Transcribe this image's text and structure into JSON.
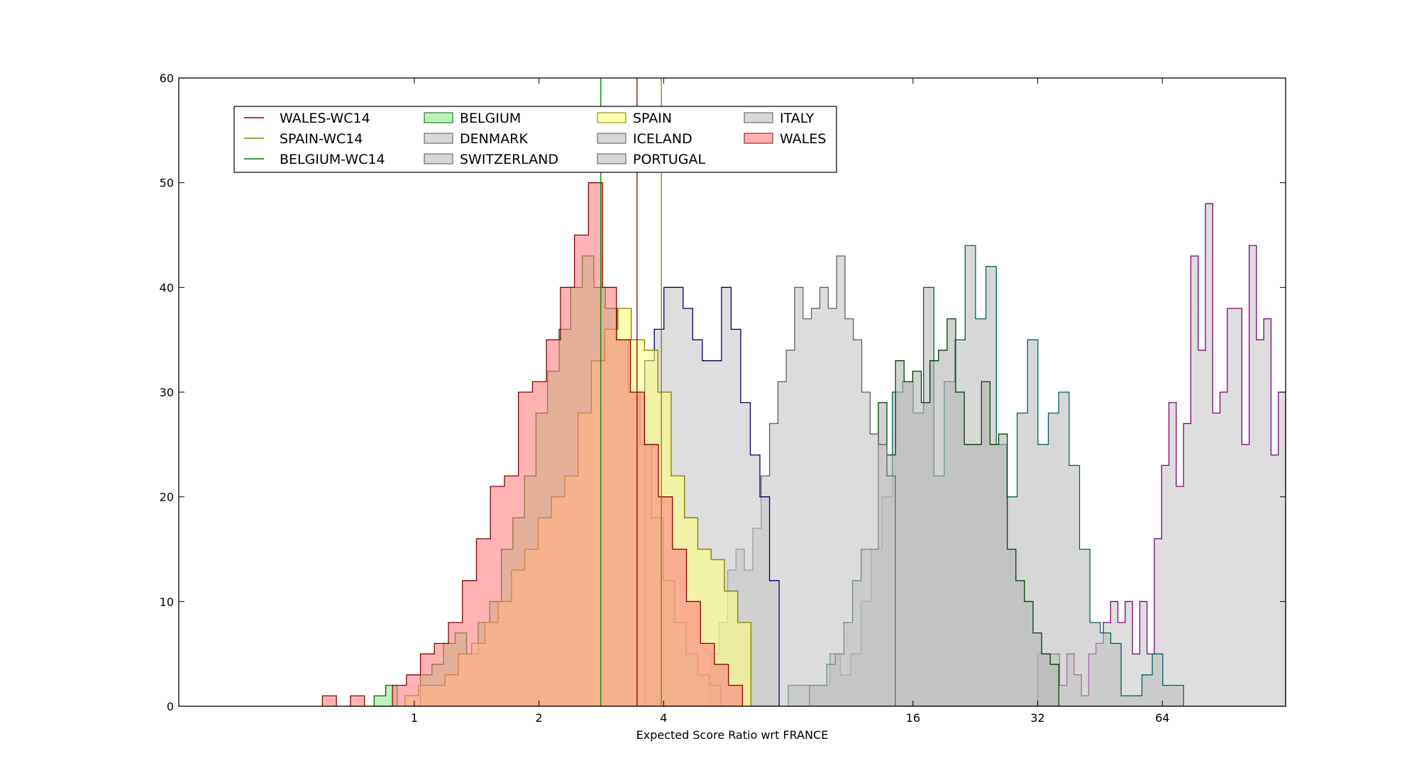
{
  "chart_data": {
    "type": "histogram",
    "xlabel": "Expected Score Ratio wrt FRANCE",
    "ylabel": "",
    "x_scale": "log2",
    "xlim": [
      0.27,
      127
    ],
    "ylim": [
      0,
      60
    ],
    "x_ticks": [
      {
        "value": 1,
        "label": "1"
      },
      {
        "value": 2,
        "label": "2"
      },
      {
        "value": 4,
        "label": "4"
      },
      {
        "value": 16,
        "label": "16"
      },
      {
        "value": 32,
        "label": "32"
      },
      {
        "value": 64,
        "label": "64"
      }
    ],
    "y_ticks": [
      {
        "value": 0,
        "label": "0"
      },
      {
        "value": 10,
        "label": "10"
      },
      {
        "value": 20,
        "label": "20"
      },
      {
        "value": 30,
        "label": "30"
      },
      {
        "value": 40,
        "label": "40"
      },
      {
        "value": 50,
        "label": "50"
      },
      {
        "value": 60,
        "label": "60"
      }
    ],
    "legend_position": "upper-left",
    "reference_lines": [
      {
        "name": "WALES-WC14",
        "x": 3.45,
        "color": "#8b0000"
      },
      {
        "name": "SPAIN-WC14",
        "x": 3.95,
        "color": "#808000"
      },
      {
        "name": "BELGIUM-WC14",
        "x": 2.82,
        "color": "#008000"
      }
    ],
    "series": [
      {
        "name": "ITALY",
        "fill": "#c8c8c8",
        "stroke": "#800080",
        "x_start": 32,
        "x_end": 127,
        "counts": [
          5,
          5,
          5,
          2,
          5,
          3,
          1,
          5,
          6,
          8,
          10,
          8,
          10,
          5,
          10,
          5,
          16,
          23,
          29,
          21,
          27,
          43,
          34,
          48,
          28,
          30,
          38,
          38,
          25,
          44,
          35,
          37,
          24,
          30
        ]
      },
      {
        "name": "DENMARK",
        "fill": "#bcbcbc",
        "stroke": "#006060",
        "x_start": 8,
        "x_end": 72,
        "counts": [
          2,
          2,
          2,
          2,
          5,
          3,
          5,
          10,
          15,
          20,
          30,
          31,
          28,
          40,
          22,
          31,
          35,
          44,
          37,
          42,
          25,
          20,
          28,
          35,
          25,
          28,
          30,
          23,
          15,
          8,
          7,
          6,
          1,
          1,
          3,
          5,
          2,
          2
        ]
      },
      {
        "name": "SWITZERLAND",
        "fill": "#b4b4b4",
        "stroke": "#004000",
        "x_start": 9,
        "x_end": 36,
        "counts": [
          2,
          2,
          4,
          5,
          8,
          12,
          15,
          15,
          29,
          24,
          33,
          31,
          32,
          29,
          33,
          34,
          37,
          30,
          25,
          25,
          31,
          25,
          26,
          15,
          12,
          10,
          7,
          5,
          4
        ]
      },
      {
        "name": "ICELAND",
        "fill": "#c4c4c4",
        "stroke": "#606060",
        "x_start": 5.2,
        "x_end": 14.5,
        "counts": [
          5,
          8,
          13,
          15,
          13,
          17,
          22,
          27,
          31,
          34,
          40,
          37,
          38,
          40,
          38,
          43,
          37,
          35,
          30,
          26,
          25,
          22
        ]
      },
      {
        "name": "PORTUGAL",
        "fill": "#c8c8c8",
        "stroke": "#000060",
        "x_start": 3.6,
        "x_end": 7.6,
        "counts": [
          33,
          36,
          40,
          40,
          38,
          35,
          33,
          33,
          40,
          36,
          29,
          24,
          20,
          12
        ]
      },
      {
        "name": "BELGIUM",
        "fill": "#90ee90",
        "stroke": "#006400",
        "x_start": 0.8,
        "x_end": 5.5,
        "counts": [
          1,
          2,
          0,
          0,
          3,
          4,
          6,
          7,
          5,
          8,
          10,
          15,
          18,
          22,
          28,
          32,
          36,
          40,
          43,
          40,
          38,
          35,
          30,
          25,
          18,
          12,
          8,
          5,
          3,
          2
        ]
      },
      {
        "name": "SPAIN",
        "fill": "#ffff80",
        "stroke": "#808000",
        "x_start": 0.95,
        "x_end": 6.5,
        "counts": [
          1,
          2,
          2,
          3,
          5,
          6,
          8,
          10,
          13,
          15,
          18,
          20,
          22,
          28,
          33,
          36,
          38,
          35,
          34,
          30,
          22,
          18,
          15,
          14,
          11,
          8
        ]
      },
      {
        "name": "WALES",
        "fill": "#ff8080",
        "stroke": "#8b0000",
        "x_start": 0.6,
        "x_end": 6.2,
        "counts": [
          1,
          0,
          1,
          0,
          0,
          2,
          3,
          5,
          6,
          8,
          12,
          16,
          21,
          22,
          30,
          31,
          35,
          40,
          45,
          50,
          40,
          35,
          30,
          25,
          20,
          15,
          10,
          6,
          4,
          2
        ]
      }
    ],
    "legend": [
      {
        "name": "WALES-WC14",
        "kind": "line",
        "color": "#8b0000"
      },
      {
        "name": "SPAIN-WC14",
        "kind": "line",
        "color": "#808000"
      },
      {
        "name": "BELGIUM-WC14",
        "kind": "line",
        "color": "#008000"
      },
      {
        "name": "BELGIUM",
        "kind": "patch",
        "fill": "#90ee90",
        "stroke": "#006400"
      },
      {
        "name": "DENMARK",
        "kind": "patch",
        "fill": "#bcbcbc",
        "stroke": "#555555"
      },
      {
        "name": "SWITZERLAND",
        "kind": "patch",
        "fill": "#bcbcbc",
        "stroke": "#555555"
      },
      {
        "name": "SPAIN",
        "kind": "patch",
        "fill": "#ffff80",
        "stroke": "#808000"
      },
      {
        "name": "ICELAND",
        "kind": "patch",
        "fill": "#bcbcbc",
        "stroke": "#555555"
      },
      {
        "name": "PORTUGAL",
        "kind": "patch",
        "fill": "#bcbcbc",
        "stroke": "#555555"
      },
      {
        "name": "ITALY",
        "kind": "patch",
        "fill": "#bcbcbc",
        "stroke": "#555555"
      },
      {
        "name": "WALES",
        "kind": "patch",
        "fill": "#ff8080",
        "stroke": "#8b0000"
      }
    ]
  }
}
